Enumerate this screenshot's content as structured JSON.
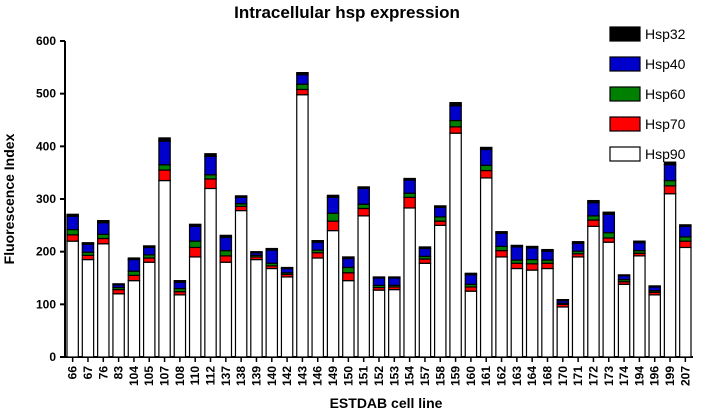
{
  "chart_data": {
    "type": "bar",
    "stacked": true,
    "title": "Intracellular hsp expression",
    "xlabel": "ESTDAB cell line",
    "ylabel": "Fluorescence  Index",
    "ylim": [
      0,
      600
    ],
    "yticks": [
      0,
      100,
      200,
      300,
      400,
      500,
      600
    ],
    "grid": false,
    "legend_position": "top-right",
    "categories": [
      "66",
      "67",
      "76",
      "83",
      "104",
      "105",
      "107",
      "108",
      "110",
      "112",
      "137",
      "138",
      "139",
      "140",
      "142",
      "143",
      "146",
      "149",
      "150",
      "151",
      "152",
      "153",
      "154",
      "157",
      "158",
      "159",
      "160",
      "161",
      "162",
      "163",
      "164",
      "168",
      "170",
      "171",
      "172",
      "173",
      "174",
      "194",
      "196",
      "199",
      "207"
    ],
    "legend_order": [
      "Hsp32",
      "Hsp40",
      "Hsp60",
      "Hsp70",
      "Hsp90"
    ],
    "series": [
      {
        "name": "Hsp90",
        "color": "#ffffff",
        "values": [
          220,
          185,
          215,
          120,
          145,
          180,
          335,
          118,
          190,
          320,
          180,
          278,
          185,
          168,
          152,
          498,
          188,
          240,
          145,
          268,
          127,
          128,
          283,
          178,
          250,
          425,
          125,
          340,
          190,
          168,
          165,
          168,
          95,
          190,
          248,
          218,
          138,
          192,
          118,
          310,
          208
        ]
      },
      {
        "name": "Hsp70",
        "color": "#ff0000",
        "values": [
          12,
          8,
          10,
          8,
          10,
          8,
          20,
          6,
          18,
          18,
          12,
          8,
          5,
          5,
          5,
          10,
          10,
          18,
          15,
          14,
          5,
          5,
          20,
          8,
          8,
          12,
          8,
          14,
          12,
          10,
          12,
          10,
          5,
          6,
          12,
          8,
          5,
          5,
          5,
          15,
          12
        ]
      },
      {
        "name": "Hsp60",
        "color": "#008000",
        "values": [
          10,
          6,
          8,
          4,
          8,
          6,
          10,
          6,
          12,
          8,
          10,
          5,
          3,
          5,
          3,
          10,
          5,
          15,
          10,
          8,
          4,
          3,
          8,
          5,
          8,
          12,
          5,
          10,
          8,
          6,
          8,
          6,
          2,
          5,
          8,
          10,
          4,
          5,
          3,
          10,
          8
        ]
      },
      {
        "name": "Hsp40",
        "color": "#0000cc",
        "values": [
          25,
          15,
          22,
          5,
          22,
          14,
          45,
          12,
          28,
          35,
          25,
          12,
          5,
          25,
          8,
          18,
          15,
          30,
          17,
          30,
          14,
          14,
          25,
          15,
          18,
          28,
          18,
          30,
          25,
          25,
          22,
          17,
          5,
          15,
          25,
          35,
          7,
          15,
          7,
          30,
          20
        ]
      },
      {
        "name": "Hsp32",
        "color": "#000000",
        "values": [
          4,
          3,
          4,
          2,
          3,
          3,
          6,
          3,
          4,
          5,
          4,
          3,
          2,
          3,
          2,
          4,
          3,
          4,
          3,
          3,
          2,
          2,
          3,
          3,
          3,
          6,
          3,
          4,
          3,
          3,
          3,
          3,
          2,
          3,
          4,
          4,
          2,
          3,
          2,
          5,
          3
        ]
      }
    ]
  }
}
